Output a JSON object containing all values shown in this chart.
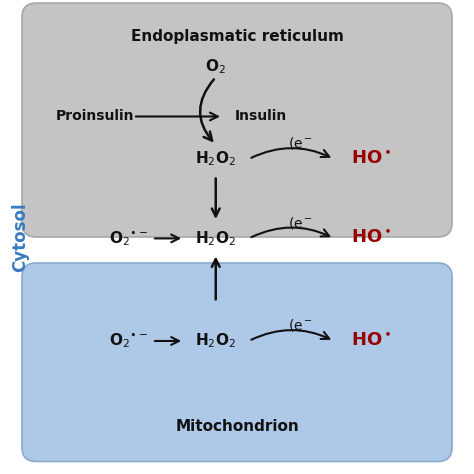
{
  "fig_size": [
    4.74,
    4.74
  ],
  "dpi": 100,
  "bg_color": "#ffffff",
  "outer_box_face": "#ffffff",
  "outer_box_edge": "#b0b8c8",
  "er_box_color": "#c4c4c4",
  "er_box_edge": "#a8a8a8",
  "mito_box_color": "#aec8e8",
  "mito_box_edge": "#88aacc",
  "cytosol_label_color": "#3a7abf",
  "ho_color": "#990000",
  "black": "#111111",
  "er_title": "Endoplasmatic reticulum",
  "mito_title": "Mitochondrion",
  "cytosol_label": "Cytosol"
}
